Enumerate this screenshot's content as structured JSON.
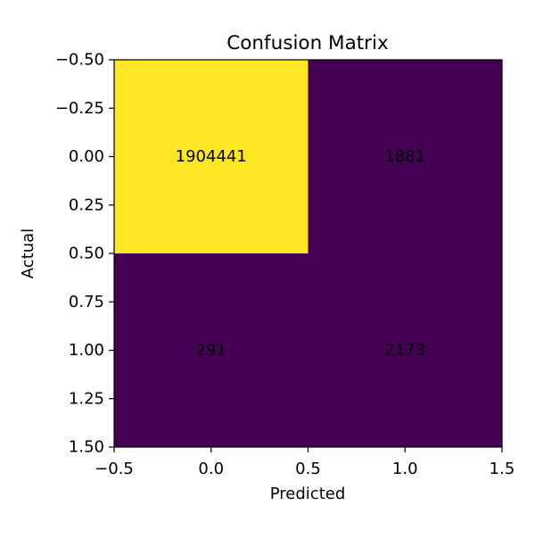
{
  "chart_data": {
    "type": "heatmap",
    "title": "Confusion Matrix",
    "xlabel": "Predicted",
    "ylabel": "Actual",
    "matrix": [
      [
        1904441,
        1881
      ],
      [
        291,
        2173
      ]
    ],
    "cell_labels": [
      [
        "1904441",
        "1881"
      ],
      [
        "291",
        "2173"
      ]
    ],
    "xlim": [
      -0.5,
      1.5
    ],
    "ylim": [
      1.5,
      -0.5
    ],
    "x_ticks": [
      -0.5,
      0.0,
      0.5,
      1.0,
      1.5
    ],
    "x_tick_labels": [
      "−0.5",
      "0.0",
      "0.5",
      "1.0",
      "1.5"
    ],
    "y_ticks": [
      -0.5,
      -0.25,
      0.0,
      0.25,
      0.5,
      0.75,
      1.0,
      1.25,
      1.5
    ],
    "y_tick_labels": [
      "−0.50",
      "−0.25",
      "0.00",
      "0.25",
      "0.50",
      "0.75",
      "1.00",
      "1.25",
      "1.50"
    ],
    "colormap": "viridis",
    "low_color": "#440154",
    "high_color": "#fde725",
    "grid": false,
    "colorbar": false
  }
}
